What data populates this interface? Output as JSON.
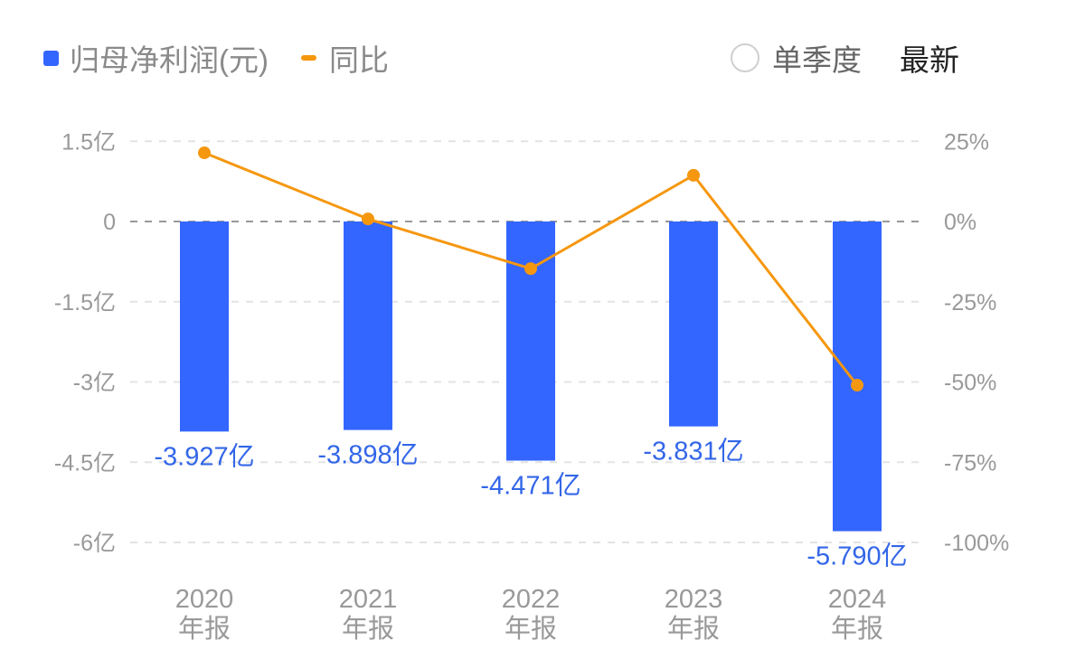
{
  "legend": {
    "bar_series": "归母净利润(元)",
    "line_series": "同比"
  },
  "controls": {
    "single_quarter_label": "单季度",
    "latest_label": "最新"
  },
  "colors": {
    "bar": "#3366ff",
    "line": "#f5970f",
    "value_label": "#3366e8",
    "axis_text": "#999999"
  },
  "axes": {
    "left_ticks": [
      "1.5亿",
      "0",
      "-1.5亿",
      "-3亿",
      "-4.5亿",
      "-6亿"
    ],
    "right_ticks": [
      "25%",
      "0%",
      "-25%",
      "-50%",
      "-75%",
      "-100%"
    ]
  },
  "categories": [
    {
      "year": "2020",
      "period": "年报"
    },
    {
      "year": "2021",
      "period": "年报"
    },
    {
      "year": "2022",
      "period": "年报"
    },
    {
      "year": "2023",
      "period": "年报"
    },
    {
      "year": "2024",
      "period": "年报"
    }
  ],
  "bar_labels": [
    "-3.927亿",
    "-3.898亿",
    "-4.471亿",
    "-3.831亿",
    "-5.790亿"
  ],
  "chart_data": {
    "type": "bar",
    "title": "",
    "categories": [
      "2020年报",
      "2021年报",
      "2022年报",
      "2023年报",
      "2024年报"
    ],
    "series": [
      {
        "name": "归母净利润(元)",
        "type": "bar",
        "axis": "left",
        "unit": "亿",
        "values": [
          -3.927,
          -3.898,
          -4.471,
          -3.831,
          -5.79
        ]
      },
      {
        "name": "同比",
        "type": "line",
        "axis": "right",
        "unit": "%",
        "values": [
          21.4,
          0.8,
          -14.7,
          14.4,
          -51.0
        ]
      }
    ],
    "xlabel": "",
    "ylabel": "",
    "ylim": [
      -6,
      1.5
    ],
    "y2lim": [
      -100,
      25
    ],
    "left_ticks": [
      1.5,
      0,
      -1.5,
      -3,
      -4.5,
      -6
    ],
    "right_ticks": [
      25,
      0,
      -25,
      -50,
      -75,
      -100
    ],
    "grid": true,
    "legend_position": "top-left"
  }
}
